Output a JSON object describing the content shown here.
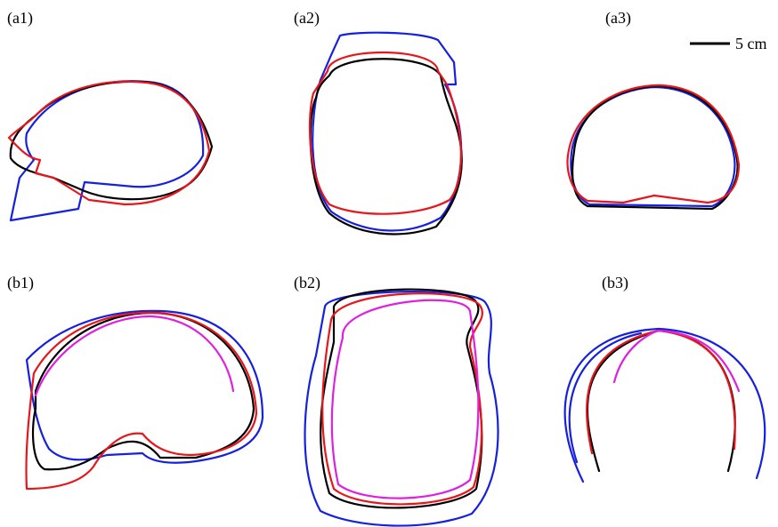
{
  "panels": [
    {
      "label": "(a1)"
    },
    {
      "label": "(a2)"
    },
    {
      "label": "(a3)"
    },
    {
      "label": "(b1)"
    },
    {
      "label": "(b2)"
    },
    {
      "label": "(b3)"
    }
  ],
  "scale_bar": {
    "label": "5 cm"
  }
}
